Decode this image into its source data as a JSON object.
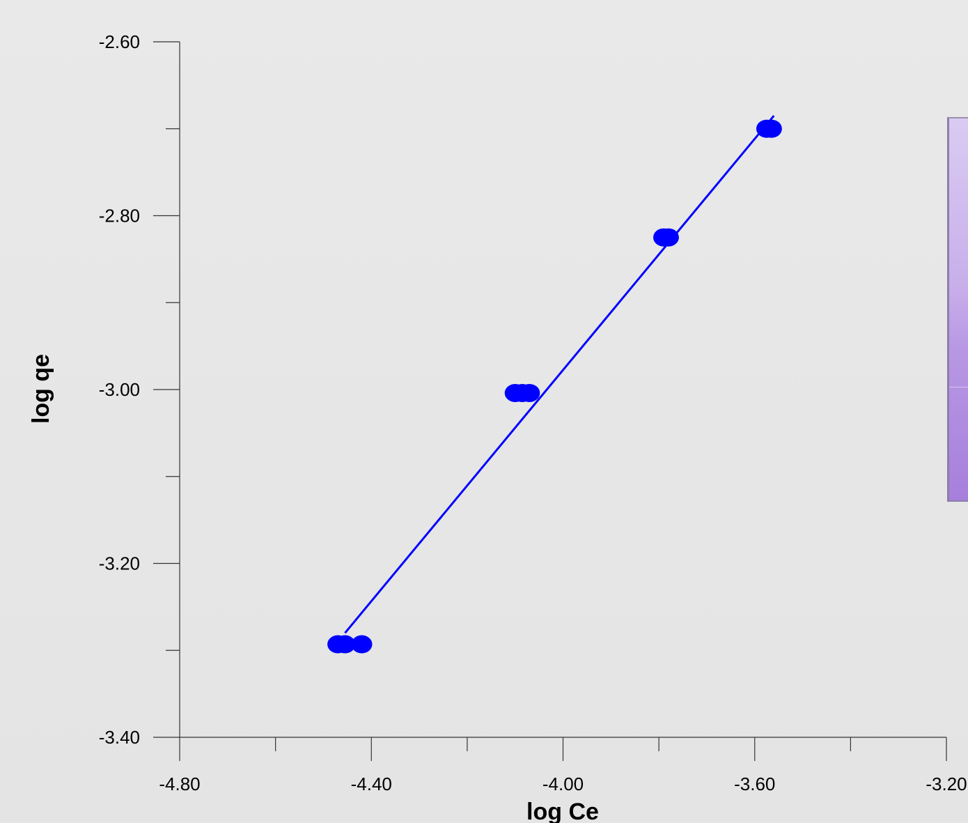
{
  "chart_data": {
    "type": "scatter",
    "title": "",
    "xlabel": "log Ce",
    "ylabel": "log qe",
    "xlim": [
      -4.8,
      -3.2
    ],
    "ylim": [
      -3.4,
      -2.6
    ],
    "x_ticks": [
      "-4.80",
      "-4.40",
      "-4.00",
      "-3.60",
      "-3.20"
    ],
    "y_ticks": [
      "-2.60",
      "-2.80",
      "-3.00",
      "-3.20",
      "-3.40"
    ],
    "x_tick_values": [
      -4.8,
      -4.4,
      -4.0,
      -3.6,
      -3.2
    ],
    "y_tick_values": [
      -2.6,
      -2.8,
      -3.0,
      -3.2,
      -3.4
    ],
    "x_minor_ticks": [
      -4.6,
      -4.2,
      -3.8,
      -3.4
    ],
    "y_minor_ticks": [
      -2.7,
      -2.9,
      -3.1,
      -3.3
    ],
    "series": [
      {
        "color": "#0000ff",
        "points": [
          {
            "x": -4.47,
            "y": -3.293
          },
          {
            "x": -4.455,
            "y": -3.293
          },
          {
            "x": -4.42,
            "y": -3.293
          },
          {
            "x": -4.1,
            "y": -3.004
          },
          {
            "x": -4.085,
            "y": -3.004
          },
          {
            "x": -4.07,
            "y": -3.004
          },
          {
            "x": -3.79,
            "y": -2.825
          },
          {
            "x": -3.78,
            "y": -2.825
          },
          {
            "x": -3.575,
            "y": -2.7
          },
          {
            "x": -3.565,
            "y": -2.7
          }
        ]
      }
    ],
    "fit_line": {
      "color": "#0000ff",
      "x": [
        -4.455,
        -3.56
      ],
      "y": [
        -3.28,
        -2.685
      ]
    },
    "grid": false,
    "legend": "none"
  }
}
